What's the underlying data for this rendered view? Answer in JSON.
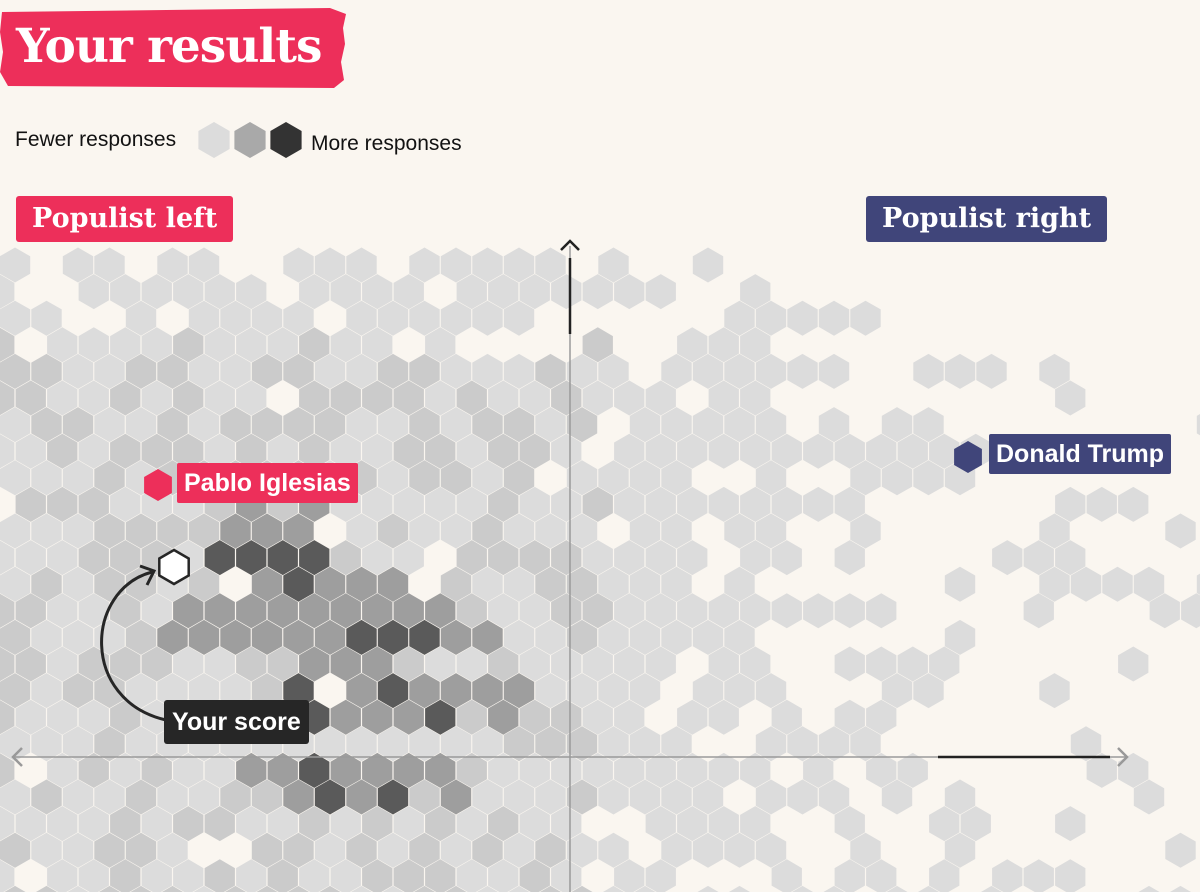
{
  "header": {
    "title": "Your results",
    "accent_color": "#ed2f5a"
  },
  "legend": {
    "low_label": "Fewer responses",
    "high_label": "More responses",
    "shades": [
      "#dcdcdc",
      "#a9a9a9",
      "#333333"
    ]
  },
  "quadrants": {
    "left_label": "Populist left",
    "right_label": "Populist right",
    "left_color": "#ed2f5a",
    "right_color": "#40457a"
  },
  "chart_data": {
    "type": "heatmap",
    "subtype": "hexbin",
    "axes": {
      "x_visible": true,
      "y_visible": true,
      "ticks": false
    },
    "density_levels": [
      {
        "level": 0,
        "color": "#dcdcdc"
      },
      {
        "level": 1,
        "color": "#cbcbcb"
      },
      {
        "level": 2,
        "color": "#9e9e9e"
      },
      {
        "level": 3,
        "color": "#5a5a5a"
      }
    ],
    "markers": [
      {
        "name": "Pablo Iglesias",
        "color": "#ed2f5a",
        "quadrant": "upper-left"
      },
      {
        "name": "Donald Trump",
        "color": "#40457a",
        "quadrant": "upper-right"
      },
      {
        "name": "Your score",
        "color": "#262626",
        "quadrant": "upper-left",
        "style": "outline"
      }
    ]
  },
  "annotations": {
    "iglesias": "Pablo Iglesias",
    "trump": "Donald Trump",
    "your_score": "Your score"
  }
}
